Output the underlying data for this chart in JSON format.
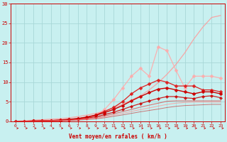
{
  "bg_color": "#c8f0f0",
  "grid_color": "#a8d8d8",
  "xlabel": "Vent moyen/en rafales ( km/h )",
  "xlabel_color": "#cc0000",
  "tick_color": "#cc0000",
  "arrow_color": "#cc0000",
  "x_values": [
    0,
    1,
    2,
    3,
    4,
    5,
    6,
    7,
    8,
    9,
    10,
    11,
    12,
    13,
    14,
    15,
    16,
    17,
    18,
    19,
    20,
    21,
    22,
    23
  ],
  "series": [
    {
      "name": "straight_line",
      "color": "#ff9999",
      "alpha": 0.85,
      "linewidth": 0.9,
      "marker": null,
      "y": [
        0,
        0.13,
        0.26,
        0.39,
        0.52,
        0.65,
        0.87,
        1.17,
        1.56,
        2.0,
        2.6,
        3.4,
        4.3,
        5.4,
        6.5,
        8.0,
        9.8,
        12.0,
        14.5,
        17.5,
        21.0,
        24.0,
        26.5,
        27.0
      ]
    },
    {
      "name": "wavy_pink",
      "color": "#ffaaaa",
      "alpha": 0.9,
      "linewidth": 0.9,
      "marker": "D",
      "markersize": 2.5,
      "y": [
        0,
        0.0,
        0.0,
        0.1,
        0.15,
        0.2,
        0.4,
        0.5,
        0.7,
        1.5,
        3.0,
        5.5,
        8.5,
        11.5,
        13.5,
        11.5,
        19.0,
        18.0,
        13.0,
        8.5,
        11.5,
        11.5,
        11.5,
        11.0
      ]
    },
    {
      "name": "mid_red_jagged",
      "color": "#dd2222",
      "alpha": 1.0,
      "linewidth": 0.9,
      "marker": "D",
      "markersize": 2.5,
      "y": [
        0,
        0.0,
        0.05,
        0.1,
        0.2,
        0.35,
        0.5,
        0.7,
        1.1,
        1.6,
        2.5,
        3.5,
        5.0,
        7.0,
        8.5,
        9.5,
        10.5,
        10.0,
        9.0,
        9.0,
        9.0,
        8.0,
        8.0,
        7.5
      ]
    },
    {
      "name": "mid_red_smooth",
      "color": "#cc0000",
      "alpha": 1.0,
      "linewidth": 1.0,
      "marker": "D",
      "markersize": 2.5,
      "y": [
        0,
        0.0,
        0.05,
        0.1,
        0.15,
        0.25,
        0.45,
        0.65,
        1.0,
        1.5,
        2.2,
        3.0,
        4.0,
        5.2,
        6.3,
        7.3,
        8.2,
        8.5,
        8.0,
        7.5,
        7.0,
        7.5,
        7.5,
        7.0
      ]
    },
    {
      "name": "lower_red1",
      "color": "#cc0000",
      "alpha": 0.85,
      "linewidth": 0.9,
      "marker": "D",
      "markersize": 2.2,
      "y": [
        0,
        0.0,
        0.05,
        0.1,
        0.15,
        0.2,
        0.35,
        0.55,
        0.8,
        1.1,
        1.7,
        2.3,
        3.0,
        3.8,
        4.5,
        5.2,
        5.8,
        6.3,
        6.3,
        6.0,
        5.8,
        6.3,
        6.5,
        6.0
      ]
    },
    {
      "name": "lower_line1",
      "color": "#dd4444",
      "alpha": 0.7,
      "linewidth": 0.8,
      "marker": null,
      "y": [
        0,
        0.0,
        0.05,
        0.08,
        0.12,
        0.18,
        0.28,
        0.42,
        0.65,
        0.9,
        1.35,
        1.9,
        2.45,
        3.0,
        3.6,
        4.1,
        4.6,
        5.1,
        5.2,
        5.2,
        5.2,
        5.2,
        5.2,
        5.2
      ]
    },
    {
      "name": "lower_line2",
      "color": "#ff9999",
      "alpha": 0.75,
      "linewidth": 0.8,
      "marker": null,
      "y": [
        0,
        0.0,
        0.04,
        0.07,
        0.1,
        0.15,
        0.22,
        0.35,
        0.55,
        0.75,
        1.1,
        1.55,
        2.0,
        2.5,
        2.95,
        3.4,
        3.85,
        4.3,
        4.6,
        4.8,
        4.9,
        4.9,
        4.9,
        4.9
      ]
    },
    {
      "name": "bottom_line",
      "color": "#cc0000",
      "alpha": 0.5,
      "linewidth": 0.7,
      "marker": null,
      "y": [
        0,
        0.0,
        0.03,
        0.05,
        0.08,
        0.12,
        0.18,
        0.28,
        0.42,
        0.6,
        0.88,
        1.25,
        1.6,
        2.0,
        2.4,
        2.75,
        3.1,
        3.5,
        3.8,
        4.0,
        4.1,
        4.2,
        4.3,
        4.3
      ]
    }
  ],
  "ylim": [
    0,
    30
  ],
  "xlim": [
    -0.5,
    23.5
  ],
  "yticks": [
    0,
    5,
    10,
    15,
    20,
    25,
    30
  ],
  "xticks": [
    0,
    1,
    2,
    3,
    4,
    5,
    6,
    7,
    8,
    9,
    10,
    11,
    12,
    13,
    14,
    15,
    16,
    17,
    18,
    19,
    20,
    21,
    22,
    23
  ]
}
